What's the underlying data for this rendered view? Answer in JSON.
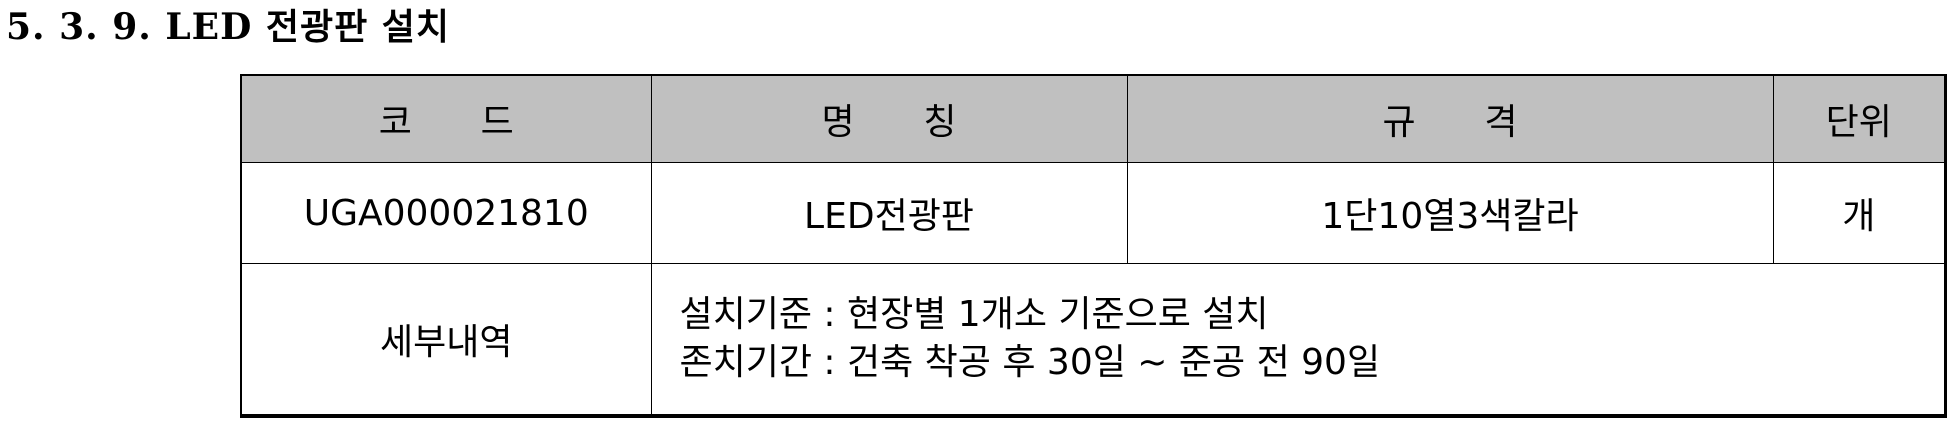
{
  "section": {
    "title": "5. 3. 9. LED 전광판 설치"
  },
  "table": {
    "headers": {
      "code": "코      드",
      "name": "명      칭",
      "spec": "규      격",
      "unit": "단위"
    },
    "row": {
      "code": "UGA000021810",
      "name": "LED전광판",
      "spec": "1단10열3색칼라",
      "unit": "개"
    },
    "details": {
      "label": "세부내역",
      "line1": "설치기준 : 현장별 1개소 기준으로 설치",
      "line2": "존치기간 : 건축 착공 후 30일 ~ 준공 전 90일"
    }
  }
}
